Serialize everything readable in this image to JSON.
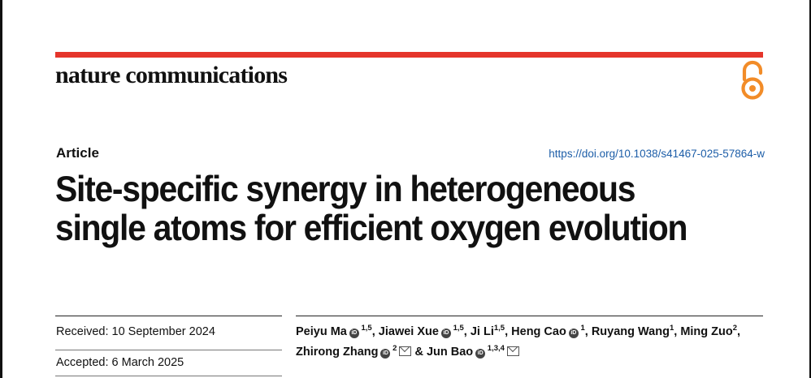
{
  "journal_name": "nature communications",
  "article_type": "Article",
  "doi": "https://doi.org/10.1038/s41467-025-57864-w",
  "title": "Site-specific synergy in heterogeneous single atoms for efficient oxygen evolution",
  "received": {
    "label": "Received:",
    "date": "10 September 2024"
  },
  "accepted": {
    "label": "Accepted:",
    "date": "6 March 2025"
  },
  "authors": [
    {
      "name": "Peiyu Ma",
      "orcid": true,
      "affil": "1,5",
      "email": false,
      "sep": ", "
    },
    {
      "name": "Jiawei Xue",
      "orcid": true,
      "affil": "1,5",
      "email": false,
      "sep": ", "
    },
    {
      "name": "Ji Li",
      "orcid": false,
      "affil": "1,5",
      "email": false,
      "sep": ", "
    },
    {
      "name": "Heng Cao",
      "orcid": true,
      "affil": "1",
      "email": false,
      "sep": ", "
    },
    {
      "name": "Ruyang Wang",
      "orcid": false,
      "affil": "1",
      "email": false,
      "sep": ", "
    },
    {
      "name": "Ming Zuo",
      "orcid": false,
      "affil": "2",
      "email": false,
      "sep": ", "
    },
    {
      "name": "Zhirong Zhang",
      "orcid": true,
      "affil": "2",
      "email": true,
      "sep": " & "
    },
    {
      "name": "Jun Bao",
      "orcid": true,
      "affil": "1,3,4",
      "email": true,
      "sep": ""
    }
  ],
  "colors": {
    "accent": "#e5352b",
    "open_access": "#f28c28",
    "link": "#1d5ea8"
  },
  "icons": {
    "open_access": "open-access-lock-icon",
    "orcid": "orcid-icon",
    "email": "email-icon"
  }
}
